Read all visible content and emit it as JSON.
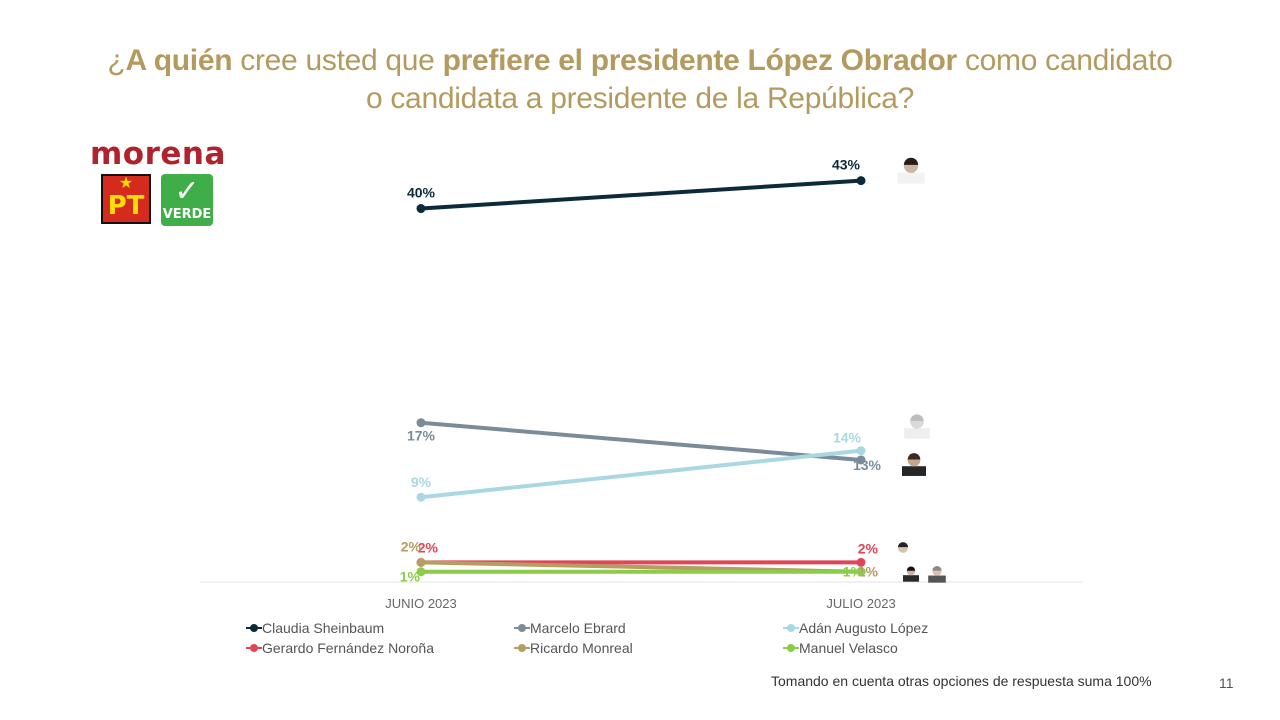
{
  "title": {
    "q_open": "¿",
    "bold1": "A quién",
    "mid1": " cree usted que ",
    "bold2": "prefiere el presidente López Obrador",
    "mid2": " como candidato",
    "line2": "o candidata a presidente de la República?"
  },
  "logos": {
    "morena": "morena",
    "pt": "PT",
    "pt_star": "★",
    "verde": "VERDE"
  },
  "colors": {
    "title": "#b39a5e",
    "sheinbaum": "#0d2a3a",
    "ebrard": "#7a8c99",
    "lopez": "#a9d8e3",
    "norona": "#e04656",
    "monreal": "#b59d63",
    "velasco": "#8ccc49"
  },
  "chart_data": {
    "type": "line",
    "categories": [
      "JUNIO 2023",
      "JULIO 2023"
    ],
    "series": [
      {
        "name": "Claudia Sheinbaum",
        "values": [
          40,
          43
        ],
        "labels": [
          "40%",
          "43%"
        ],
        "color": "#0d2a3a"
      },
      {
        "name": "Marcelo Ebrard",
        "values": [
          17,
          13
        ],
        "labels": [
          "17%",
          "13%"
        ],
        "color": "#7a8c99"
      },
      {
        "name": "Adán Augusto López",
        "values": [
          9,
          14
        ],
        "labels": [
          "9%",
          "14%"
        ],
        "color": "#a9d8e3"
      },
      {
        "name": "Gerardo Fernández Noroña",
        "values": [
          2,
          2
        ],
        "labels": [
          "2%",
          "2%"
        ],
        "color": "#e04656"
      },
      {
        "name": "Ricardo Monreal",
        "values": [
          2,
          1
        ],
        "labels": [
          "2%",
          "1%"
        ],
        "color": "#b59d63"
      },
      {
        "name": "Manuel Velasco",
        "values": [
          1,
          1
        ],
        "labels": [
          "1%",
          "1%"
        ],
        "color": "#8ccc49"
      }
    ],
    "ylim": [
      0,
      45
    ],
    "grid": false,
    "legend_position": "bottom"
  },
  "footer": {
    "note": "Tomando en cuenta otras opciones de respuesta suma 100%",
    "page_number": "11"
  }
}
